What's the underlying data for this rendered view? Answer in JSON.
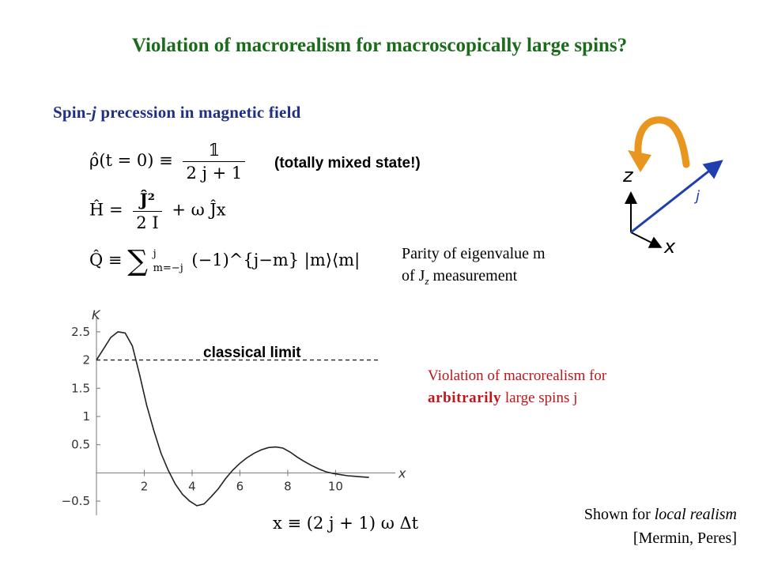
{
  "slide": {
    "title": "Violation of macrorealism for macroscopically large spins?",
    "subtitle_prefix": "Spin-",
    "subtitle_var": "j",
    "subtitle_suffix": " precession in magnetic field",
    "equations": {
      "rho_lhs": "ρ̂(t = 0) ≡",
      "rho_num": "𝟙",
      "rho_den": "2 j + 1",
      "h_lhs": "Ĥ =",
      "h_num": "Ĵ²",
      "h_den": "2 I",
      "h_rest": "+ ω Ĵx",
      "q_lhs": "Q̂ ≡",
      "q_sum": "∑",
      "q_upper": "j",
      "q_lower": "m=−j",
      "q_rest": "(−1)^{j−m} |m⟩⟨m|",
      "x_def": "x ≡ (2 j + 1) ω Δt"
    },
    "mixed_note": "(totally mixed state!)",
    "parity_line1": "Parity of eigenvalue m",
    "parity_line2_pre": "of J",
    "parity_line2_sub": "z",
    "parity_line2_post": " measurement",
    "violation_line1": "Violation of macrorealism for",
    "violation_bold": "arbitrarily",
    "violation_rest": " large spins j",
    "shown_line1_pre": "Shown for ",
    "shown_line1_italic": "local realism",
    "shown_line2": "[Mermin, Peres]",
    "classical_label": "classical limit",
    "diagram": {
      "z_label": "z",
      "x_label": "x",
      "j_label": "j"
    },
    "colors": {
      "title": "#1a6b1a",
      "subtitle": "#1f2f86",
      "red": "#c0151b",
      "arrow": "#e8961e",
      "vector": "#1f3fb0"
    }
  },
  "chart_data": {
    "type": "line",
    "title": "",
    "xlabel": "x",
    "ylabel": "K",
    "xlim": [
      0,
      12.5
    ],
    "ylim": [
      -0.75,
      2.75
    ],
    "xticks": [
      2,
      4,
      6,
      8,
      10
    ],
    "yticks": [
      -0.5,
      0.5,
      1,
      1.5,
      2,
      2.5
    ],
    "xtick_labels": [
      "2",
      "4",
      "6",
      "8",
      "10"
    ],
    "ytick_labels": [
      "−0.5",
      "0.5",
      "1",
      "1.5",
      "2",
      "2.5"
    ],
    "series": [
      {
        "x": [
          0,
          0.3,
          0.6,
          0.9,
          1.2,
          1.5,
          1.8,
          2.1,
          2.4,
          2.7,
          3.0,
          3.3,
          3.6,
          3.9,
          4.2,
          4.5,
          4.8,
          5.1,
          5.4,
          5.7,
          6.0,
          6.3,
          6.6,
          6.9,
          7.2,
          7.5,
          7.8,
          8.1,
          8.4,
          8.7,
          9.0,
          9.3,
          9.6,
          9.9,
          10.2,
          10.5,
          10.8,
          11.1,
          11.4
        ],
        "y": [
          2.0,
          2.2,
          2.4,
          2.5,
          2.48,
          2.25,
          1.75,
          1.2,
          0.75,
          0.35,
          0.05,
          -0.2,
          -0.38,
          -0.5,
          -0.58,
          -0.55,
          -0.42,
          -0.28,
          -0.1,
          0.05,
          0.17,
          0.27,
          0.35,
          0.41,
          0.45,
          0.46,
          0.44,
          0.37,
          0.28,
          0.2,
          0.13,
          0.07,
          0.02,
          -0.01,
          -0.03,
          -0.05,
          -0.06,
          -0.07,
          -0.08
        ]
      }
    ],
    "reference_line": {
      "y": 2,
      "label": "classical limit",
      "style": "dashed"
    }
  }
}
